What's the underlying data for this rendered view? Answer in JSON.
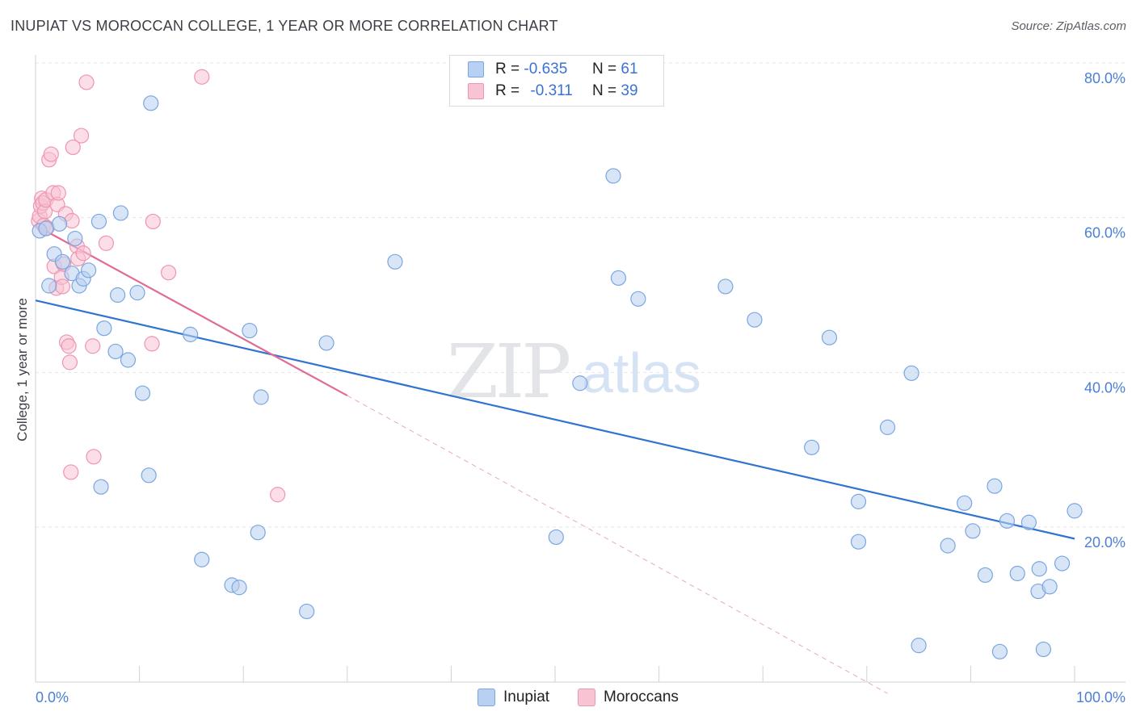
{
  "title": "INUPIAT VS MOROCCAN COLLEGE, 1 YEAR OR MORE CORRELATION CHART",
  "source": "Source: ZipAtlas.com",
  "watermark": {
    "part1": "ZIP",
    "part2": "atlas"
  },
  "legend": {
    "rows": [
      {
        "r_label": "R =",
        "r_value": "-0.635",
        "n_label": "N =",
        "n_value": "61"
      },
      {
        "r_label": "R =",
        "r_value": "-0.311",
        "n_label": "N =",
        "n_value": "39"
      }
    ]
  },
  "bottom_legend": [
    "Inupiat",
    "Moroccans"
  ],
  "colors": {
    "blue_fill": "#b8d0f1",
    "blue_stroke": "#7aa6e0",
    "blue_line": "#2f74d0",
    "pink_fill": "#f8c3d3",
    "pink_stroke": "#ee95b0",
    "pink_line": "#e06b96",
    "grid": "#e3e5e9",
    "tick_text": "#4a7fd4"
  },
  "chart_data": {
    "type": "scatter",
    "title": "INUPIAT VS MOROCCAN COLLEGE, 1 YEAR OR MORE CORRELATION CHART",
    "xlabel": "",
    "ylabel": "College, 1 year or more",
    "xlim": [
      0,
      100
    ],
    "ylim": [
      0,
      82
    ],
    "x_tick_labels": [
      "0.0%",
      "100.0%"
    ],
    "y_ticks": [
      20,
      40,
      60,
      80
    ],
    "y_tick_labels": [
      "20.0%",
      "40.0%",
      "60.0%",
      "80.0%"
    ],
    "series": [
      {
        "name": "Inupiat",
        "r": -0.635,
        "n": 61,
        "trend": {
          "x0": 0,
          "y0": 49.3,
          "x1": 100,
          "y1": 18.5,
          "dashed_to": null
        },
        "points": [
          [
            0.4,
            58.3
          ],
          [
            1.0,
            58.6
          ],
          [
            1.3,
            51.2
          ],
          [
            1.8,
            55.3
          ],
          [
            2.3,
            59.2
          ],
          [
            2.6,
            54.3
          ],
          [
            3.5,
            52.8
          ],
          [
            3.8,
            57.3
          ],
          [
            4.2,
            51.2
          ],
          [
            4.6,
            52.1
          ],
          [
            5.1,
            53.2
          ],
          [
            6.1,
            59.5
          ],
          [
            6.3,
            25.2
          ],
          [
            6.6,
            45.7
          ],
          [
            7.7,
            42.7
          ],
          [
            7.9,
            50.0
          ],
          [
            8.2,
            60.6
          ],
          [
            8.9,
            41.6
          ],
          [
            9.8,
            50.3
          ],
          [
            10.3,
            37.3
          ],
          [
            10.9,
            26.7
          ],
          [
            11.1,
            74.8
          ],
          [
            14.9,
            44.9
          ],
          [
            16.0,
            15.8
          ],
          [
            18.9,
            12.5
          ],
          [
            19.6,
            12.2
          ],
          [
            20.6,
            45.4
          ],
          [
            21.4,
            19.3
          ],
          [
            21.7,
            36.8
          ],
          [
            26.1,
            9.1
          ],
          [
            28.0,
            43.8
          ],
          [
            34.6,
            54.3
          ],
          [
            50.1,
            18.7
          ],
          [
            52.4,
            38.6
          ],
          [
            55.6,
            65.4
          ],
          [
            56.1,
            52.2
          ],
          [
            58.0,
            49.5
          ],
          [
            66.4,
            51.1
          ],
          [
            69.2,
            46.8
          ],
          [
            74.7,
            30.3
          ],
          [
            76.4,
            44.5
          ],
          [
            79.2,
            23.3
          ],
          [
            79.2,
            18.1
          ],
          [
            82.0,
            32.9
          ],
          [
            84.3,
            39.9
          ],
          [
            85.0,
            4.7
          ],
          [
            87.8,
            17.6
          ],
          [
            89.4,
            23.1
          ],
          [
            90.2,
            19.5
          ],
          [
            91.4,
            13.8
          ],
          [
            92.3,
            25.3
          ],
          [
            92.8,
            3.9
          ],
          [
            93.5,
            20.8
          ],
          [
            94.5,
            14.0
          ],
          [
            95.6,
            20.6
          ],
          [
            96.5,
            11.7
          ],
          [
            96.6,
            14.6
          ],
          [
            97.0,
            4.2
          ],
          [
            97.6,
            12.3
          ],
          [
            98.8,
            15.3
          ],
          [
            100.0,
            22.1
          ]
        ]
      },
      {
        "name": "Moroccans",
        "r": -0.311,
        "n": 39,
        "trend": {
          "x0": 0,
          "y0": 59.0,
          "x1": 30.0,
          "y1": 37.0,
          "dashed_to": {
            "x": 82.0,
            "y": -1.5
          }
        },
        "points": [
          [
            0.3,
            59.6
          ],
          [
            0.4,
            60.2
          ],
          [
            0.5,
            61.5
          ],
          [
            0.6,
            62.5
          ],
          [
            0.7,
            61.9
          ],
          [
            0.8,
            59.0
          ],
          [
            0.9,
            60.8
          ],
          [
            1.0,
            62.3
          ],
          [
            1.1,
            58.7
          ],
          [
            1.3,
            67.5
          ],
          [
            1.5,
            68.2
          ],
          [
            1.7,
            63.2
          ],
          [
            1.8,
            53.7
          ],
          [
            2.0,
            50.9
          ],
          [
            2.1,
            61.7
          ],
          [
            2.2,
            63.2
          ],
          [
            2.5,
            52.3
          ],
          [
            2.6,
            51.1
          ],
          [
            2.7,
            54.0
          ],
          [
            2.9,
            60.5
          ],
          [
            3.0,
            43.9
          ],
          [
            3.2,
            43.4
          ],
          [
            3.3,
            41.3
          ],
          [
            3.4,
            27.1
          ],
          [
            3.5,
            59.6
          ],
          [
            3.6,
            69.1
          ],
          [
            4.0,
            56.3
          ],
          [
            4.1,
            54.7
          ],
          [
            4.4,
            70.6
          ],
          [
            4.6,
            55.4
          ],
          [
            4.9,
            77.5
          ],
          [
            5.5,
            43.4
          ],
          [
            5.6,
            29.1
          ],
          [
            6.8,
            56.7
          ],
          [
            11.2,
            43.7
          ],
          [
            11.3,
            59.5
          ],
          [
            12.8,
            52.9
          ],
          [
            16.0,
            78.2
          ],
          [
            23.3,
            24.2
          ]
        ]
      }
    ]
  }
}
